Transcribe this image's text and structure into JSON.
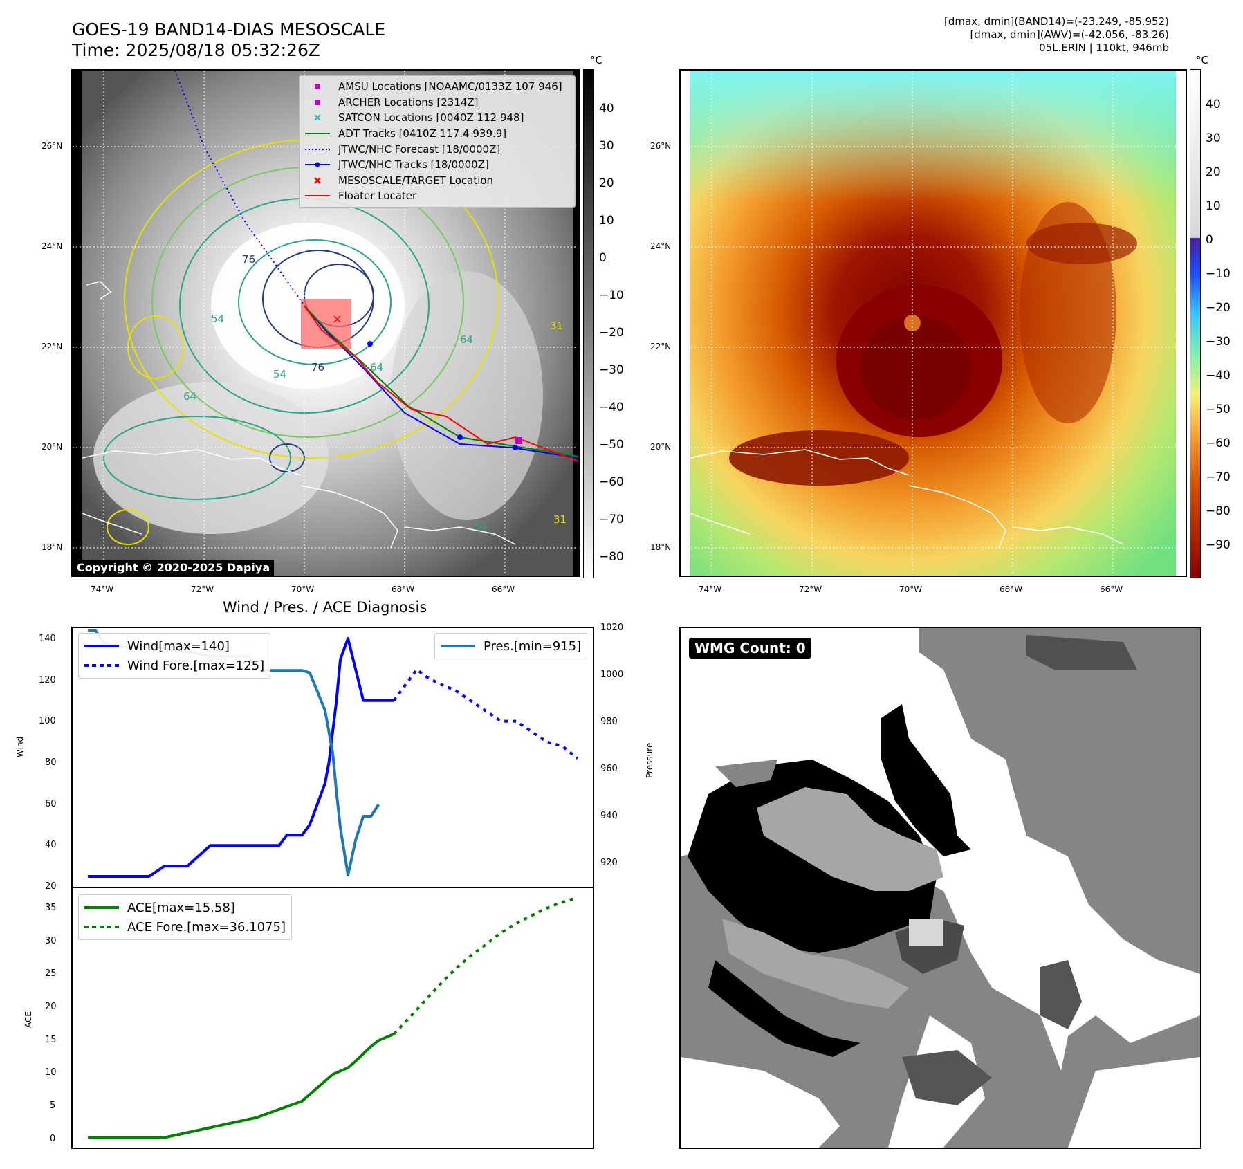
{
  "header": {
    "title_line1": "GOES-19 BAND14-DIAS MESOSCALE",
    "title_line2": "Time: 2025/08/18 05:32:26Z",
    "info_line1": "[dmax, dmin](BAND14)=(-23.249, -85.952)",
    "info_line2": "[dmax, dmin](AWV)=(-42.056, -83.26)",
    "info_line3": "05L.ERIN | 110kt, 946mb"
  },
  "maps": {
    "unit": "°C",
    "lat_ticks": [
      "26°N",
      "24°N",
      "22°N",
      "20°N",
      "18°N"
    ],
    "lon_ticks_left": [
      "74°W",
      "72°W",
      "70°W",
      "68°W",
      "66°W"
    ],
    "lon_ticks_right": [
      "74°W",
      "72°W",
      "70°W",
      "68°W",
      "66°W"
    ],
    "copyright": "Copyright © 2020-2025 Dapiya",
    "contour_labels": [
      "76",
      "64",
      "54",
      "76",
      "64",
      "54",
      "64",
      "31",
      "54",
      "31"
    ],
    "colorbar_left_ticks": [
      "40",
      "30",
      "20",
      "10",
      "0",
      "−10",
      "−20",
      "−30",
      "−40",
      "−50",
      "−60",
      "−70",
      "−80"
    ],
    "colorbar_right_ticks": [
      "40",
      "30",
      "20",
      "10",
      "0",
      "−10",
      "−20",
      "−30",
      "−40",
      "−50",
      "−60",
      "−70",
      "−80",
      "−90"
    ],
    "legend": [
      {
        "icon": "square-marker-icon",
        "color": "#c000c0",
        "label": "AMSU Locations [NOAAMC/0133Z 107 946]"
      },
      {
        "icon": "square-marker-icon",
        "color": "#c000c0",
        "label": "ARCHER Locations [2314Z]"
      },
      {
        "icon": "x-marker-icon",
        "color": "#20b8b8",
        "label": "SATCON Locations [0040Z 112 948]"
      },
      {
        "icon": "solid-line-icon",
        "color": "#008000",
        "label": "ADT Tracks [0410Z 117.4 939.9]"
      },
      {
        "icon": "dotted-line-icon",
        "color": "#0000ff",
        "label": "JTWC/NHC Forecast [18/0000Z]"
      },
      {
        "icon": "dot-line-icon",
        "color": "#0000ff",
        "label": "JTWC/NHC Tracks [18/0000Z]"
      },
      {
        "icon": "x-marker-icon",
        "color": "#ff0000",
        "label": "MESOSCALE/TARGET Location"
      },
      {
        "icon": "solid-line-icon",
        "color": "#ff0000",
        "label": "Floater Locater"
      }
    ]
  },
  "diagnosis": {
    "title": "Wind / Pres. / ACE Diagnosis",
    "wind_ylabel": "Wind",
    "pres_ylabel": "Pressure",
    "ace_ylabel": "ACE",
    "wind_ticks": [
      "140",
      "120",
      "100",
      "80",
      "60",
      "40",
      "20"
    ],
    "pres_ticks": [
      "1020",
      "1000",
      "980",
      "960",
      "940",
      "920"
    ],
    "ace_ticks": [
      "35",
      "30",
      "25",
      "20",
      "15",
      "10",
      "5",
      "0"
    ],
    "legend_wind": "Wind[max=140]",
    "legend_wind_fore": "Wind Fore.[max=125]",
    "legend_pres": "Pres.[min=915]",
    "legend_ace": "ACE[max=15.58]",
    "legend_ace_fore": "ACE Fore.[max=36.1075]"
  },
  "chart_data": [
    {
      "type": "line",
      "title": "Wind / Pres. / ACE Diagnosis",
      "ylabel": "Wind",
      "y2label": "Pressure",
      "ylim": [
        20,
        145
      ],
      "y2lim": [
        910,
        1020
      ],
      "series": [
        {
          "name": "Wind[max=140]",
          "axis": "left",
          "color": "#0000ff",
          "x": [
            0,
            3,
            6,
            8,
            10,
            13,
            16,
            18,
            21,
            23,
            25,
            26,
            27,
            28,
            29,
            29.5,
            30,
            30.5,
            31,
            31.5,
            32,
            32.5,
            33,
            34,
            35,
            36,
            37,
            38,
            39,
            40
          ],
          "values": [
            25,
            25,
            25,
            25,
            30,
            30,
            40,
            40,
            40,
            40,
            40,
            45,
            45,
            45,
            50,
            55,
            60,
            65,
            70,
            80,
            95,
            110,
            130,
            140,
            125,
            110,
            110,
            110,
            110,
            110
          ]
        },
        {
          "name": "Wind Fore.[max=125]",
          "axis": "left",
          "color": "#0000ff",
          "dash": true,
          "x": [
            40,
            41,
            42,
            43,
            44,
            46,
            48,
            50,
            52,
            54,
            56,
            58,
            60,
            62,
            64
          ],
          "values": [
            110,
            115,
            120,
            125,
            122,
            118,
            115,
            110,
            105,
            100,
            100,
            95,
            90,
            88,
            82
          ]
        },
        {
          "name": "Pres.[min=915]",
          "axis": "right",
          "color": "#1f77b4",
          "x": [
            0,
            1,
            2,
            3,
            5,
            8,
            10,
            13,
            16,
            19,
            21,
            22,
            23,
            25,
            26,
            27,
            28,
            29,
            30,
            31,
            32,
            32.5,
            33,
            33.5,
            34,
            35,
            36,
            37,
            38
          ],
          "values": [
            1019,
            1019,
            1014,
            1013,
            1012,
            1012,
            1011,
            1010,
            1008,
            1008,
            1008,
            1003,
            1002,
            1002,
            1002,
            1002,
            1002,
            1001,
            993,
            985,
            967,
            950,
            935,
            925,
            915,
            930,
            940,
            940,
            945
          ]
        }
      ]
    },
    {
      "type": "line",
      "ylabel": "ACE",
      "ylim": [
        -1.5,
        37.5
      ],
      "series": [
        {
          "name": "ACE[max=15.58]",
          "color": "#008000",
          "x": [
            0,
            5,
            10,
            16,
            22,
            28,
            32,
            34,
            35,
            36,
            37,
            38,
            40
          ],
          "values": [
            0,
            0,
            0,
            1.5,
            3,
            5.5,
            9.5,
            10.5,
            11.5,
            12.6,
            13.7,
            14.6,
            15.58
          ]
        },
        {
          "name": "ACE Fore.[max=36.1075]",
          "color": "#008000",
          "dash": true,
          "x": [
            40,
            42,
            44,
            46,
            48,
            50,
            52,
            54,
            56,
            58,
            60,
            62,
            64
          ],
          "values": [
            15.58,
            18,
            20.5,
            23,
            25.3,
            27.3,
            29,
            30.8,
            32.2,
            33.4,
            34.5,
            35.4,
            36.1
          ]
        }
      ]
    }
  ],
  "wmg": {
    "label": "WMG Count: 0"
  }
}
